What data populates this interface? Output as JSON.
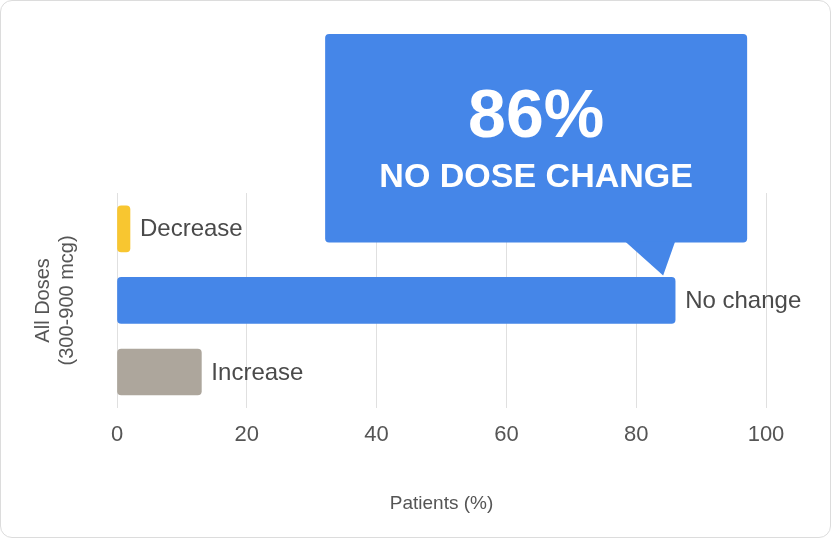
{
  "chart_data": {
    "type": "bar",
    "orientation": "horizontal",
    "categories": [
      "Decrease",
      "No change",
      "Increase"
    ],
    "values": [
      2,
      86,
      13
    ],
    "colors": [
      "#F8C630",
      "#4586E8",
      "#ADA69C"
    ],
    "x_label": "Patients (%)",
    "y_label": [
      "All Doses",
      "(300-900 mcg)"
    ],
    "xlim": [
      0,
      100
    ],
    "xticks": [
      0,
      20,
      40,
      60,
      80,
      100
    ],
    "grid": true,
    "tick_labels": "x",
    "annotation": {
      "category": "No change",
      "text": "86%",
      "subtext": "NO DOSE CHANGE",
      "color": "#4586E8"
    }
  }
}
